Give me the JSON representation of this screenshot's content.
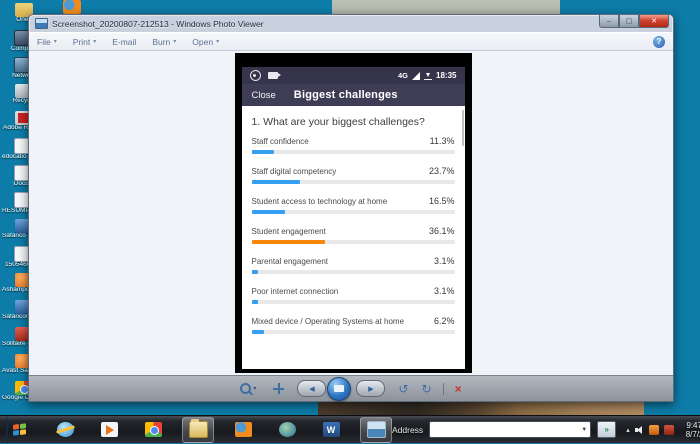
{
  "desktop": {
    "background_color": "#0d7ca8",
    "firefox_icon": {
      "label": "Mozilla"
    },
    "icons": [
      {
        "label": "Ones",
        "type": "folder"
      },
      {
        "label": "Compu...",
        "type": "computer"
      },
      {
        "label": "Netwo...",
        "type": "network"
      },
      {
        "label": "Recycle",
        "type": "recycle"
      },
      {
        "label": "Adobe Reader",
        "type": "pdf"
      },
      {
        "label": "educatio cove...",
        "type": "doc"
      },
      {
        "label": "Docu...",
        "type": "doc"
      },
      {
        "label": "RESUMP OF SCH...",
        "type": "doc"
      },
      {
        "label": "Safarico Broadba...",
        "type": "appblue"
      },
      {
        "label": "150546663...",
        "type": "doc"
      },
      {
        "label": "Ashampoo Burning...",
        "type": "orange"
      },
      {
        "label": "Safaricom Broadband",
        "type": "appblue"
      },
      {
        "label": "Solitaire - Shortcut",
        "type": "red"
      },
      {
        "label": "Avast SafeZo...",
        "type": "orange"
      },
      {
        "label": "Google Chrome",
        "type": "chrome"
      }
    ]
  },
  "window": {
    "title": "Screenshot_20200807-212513 - Windows Photo Viewer",
    "controls": {
      "minimize": "–",
      "maximize": "▢",
      "close": "✕"
    },
    "menu": [
      {
        "label": "File",
        "dropdown": true
      },
      {
        "label": "Print",
        "dropdown": true
      },
      {
        "label": "E-mail",
        "dropdown": false
      },
      {
        "label": "Burn",
        "dropdown": true
      },
      {
        "label": "Open",
        "dropdown": true
      }
    ],
    "help_label": "?"
  },
  "phone": {
    "status": {
      "network": "4G",
      "time": "18:35"
    },
    "nav": {
      "close_label": "Close",
      "title": "Biggest challenges"
    }
  },
  "chart_data": {
    "type": "bar",
    "orientation": "horizontal",
    "title": "1. What are your biggest challenges?",
    "categories": [
      "Staff confidence",
      "Staff digital competency",
      "Student access to technology at home",
      "Student engagement",
      "Parental engagement",
      "Poor internet connection",
      "Mixed device / Operating Systems at home"
    ],
    "values": [
      11.3,
      23.7,
      16.5,
      36.1,
      3.1,
      3.1,
      6.2
    ],
    "value_labels": [
      "11.3%",
      "23.7%",
      "16.5%",
      "36.1%",
      "3.1%",
      "3.1%",
      "6.2%"
    ],
    "xlim": [
      0,
      100
    ],
    "bar_color": "#35a0f2",
    "highlight_color": "#f8860a",
    "highlight_index": 3,
    "track_color": "#e9e9eb",
    "grid": false,
    "legend": null
  },
  "viewer_toolbar": {
    "zoom": "zoom",
    "actual_size": "actual size",
    "previous": "◀",
    "slideshow": "slideshow",
    "next": "▶",
    "rotate_ccw": "↺",
    "rotate_cw": "↻",
    "delete": "×"
  },
  "taskbar": {
    "items": [
      {
        "name": "internet-explorer",
        "type": "ie",
        "open": false
      },
      {
        "name": "windows-media-player",
        "type": "wmp",
        "open": false
      },
      {
        "name": "chrome",
        "type": "chrome",
        "open": false
      },
      {
        "name": "file-explorer",
        "type": "explorer",
        "open": true
      },
      {
        "name": "firefox",
        "type": "firefox",
        "open": false
      },
      {
        "name": "internet-globe",
        "type": "globe",
        "open": false
      },
      {
        "name": "word",
        "type": "word",
        "open": false,
        "glyph": "W"
      },
      {
        "name": "photo-viewer",
        "type": "pviewer",
        "open": true
      }
    ],
    "address": {
      "label": "Address",
      "value": "",
      "go": "»"
    },
    "tray_chevron": "▴",
    "clock": {
      "time": "9:47 PM",
      "date": "8/7/2020"
    }
  }
}
